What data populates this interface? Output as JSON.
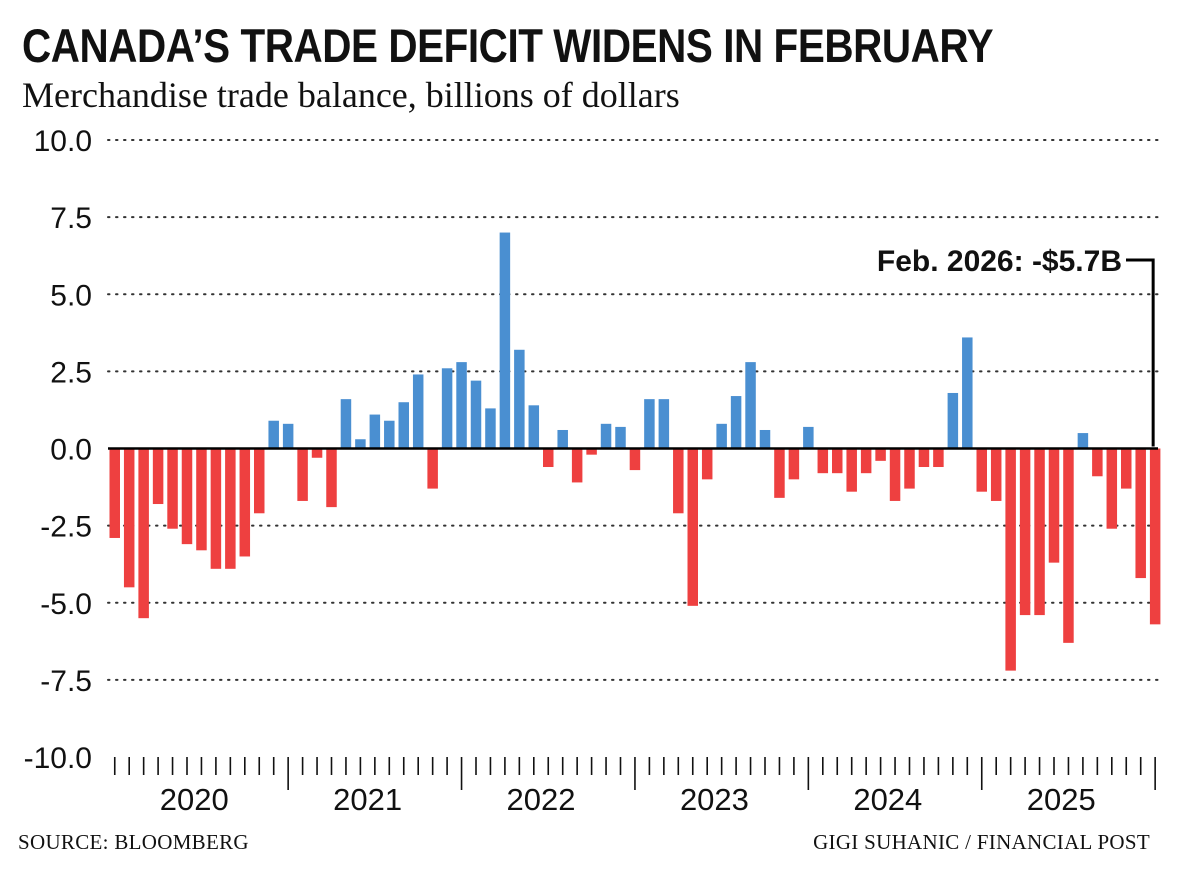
{
  "header": {
    "title": "CANADA’S TRADE DEFICIT WIDENS IN FEBRUARY",
    "subtitle": "Merchandise trade balance, billions of dollars"
  },
  "footer": {
    "source": "SOURCE: BLOOMBERG",
    "credit": "GIGI SUHANIC / FINANCIAL POST"
  },
  "colors": {
    "positive": "#4a8fd1",
    "negative": "#ee4040",
    "text": "#111111"
  },
  "chart_data": {
    "type": "bar",
    "title": "CANADA’S TRADE DEFICIT WIDENS IN FEBRUARY",
    "ylabel": "Merchandise trade balance, billions of dollars",
    "xlabel": "",
    "ylim": [
      -10,
      10
    ],
    "yticks": [
      "10.0",
      "7.5",
      "5.0",
      "2.5",
      "0.0",
      "-2.5",
      "-5.0",
      "-7.5",
      "-10.0"
    ],
    "ytick_values": [
      10,
      7.5,
      5,
      2.5,
      0,
      -2.5,
      -5,
      -7.5,
      -10
    ],
    "grid": "horizontal dotted",
    "start_month": "Jan. 2020",
    "end_month": "Feb. 2026",
    "frequency": "monthly",
    "years": [
      "2020",
      "2021",
      "2022",
      "2023",
      "2024",
      "2025"
    ],
    "values": [
      -2.9,
      -4.5,
      -5.5,
      -1.8,
      -2.6,
      -3.1,
      -3.3,
      -3.9,
      -3.9,
      -3.5,
      -2.1,
      0.9,
      0.8,
      -1.7,
      -0.3,
      -1.9,
      1.6,
      0.3,
      1.1,
      0.9,
      1.5,
      2.4,
      -1.3,
      2.6,
      2.8,
      2.2,
      1.3,
      7.0,
      3.2,
      1.4,
      -0.6,
      0.6,
      -1.1,
      -0.2,
      0.8,
      0.7,
      -0.7,
      1.6,
      1.6,
      -2.1,
      -5.1,
      -1.0,
      0.8,
      1.7,
      2.8,
      0.6,
      -1.6,
      -1.0,
      0.7,
      -0.8,
      -0.8,
      -1.4,
      -0.8,
      -0.4,
      -1.7,
      -1.3,
      -0.6,
      -0.6,
      1.8,
      3.6,
      -1.4,
      -1.7,
      -7.2,
      -5.4,
      -5.4,
      -3.7,
      -6.3,
      0.5,
      -0.9,
      -2.6,
      -1.3,
      -4.2,
      -5.7
    ],
    "annotations": [
      {
        "text": "Feb. 2026: -$5.7B",
        "x": "Feb. 2026",
        "y": -5.7
      }
    ]
  }
}
